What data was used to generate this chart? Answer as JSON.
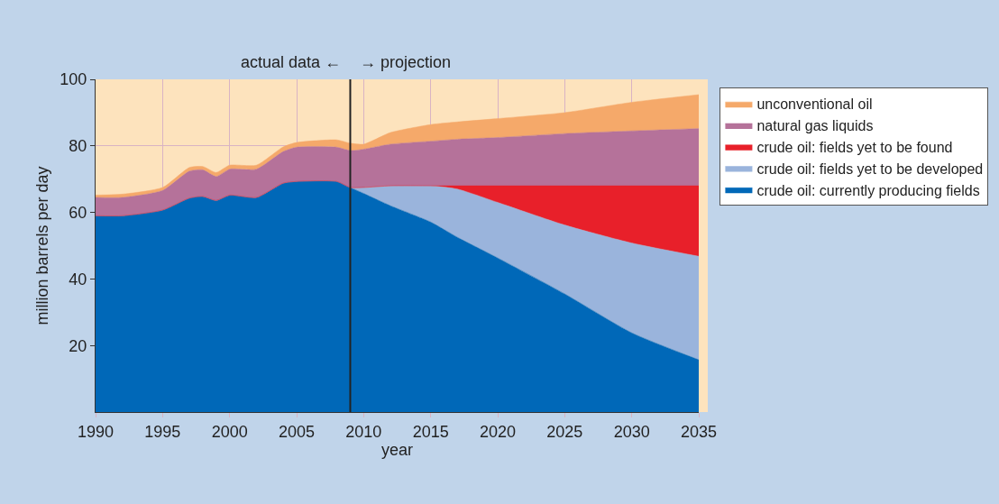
{
  "chart_data": {
    "type": "area",
    "stacked": true,
    "xlabel": "year",
    "ylabel": "million barrels per day",
    "x": [
      1990,
      1992,
      1995,
      1997,
      1998,
      1999,
      2000,
      2002,
      2004,
      2005,
      2008,
      2009,
      2010,
      2012,
      2015,
      2017,
      2020,
      2025,
      2030,
      2035
    ],
    "series": [
      {
        "name": "crude oil: currently producing fields",
        "color": "#0068b8",
        "values": [
          59,
          59,
          60.7,
          64.3,
          64.8,
          63.6,
          65.2,
          64.5,
          68.8,
          69.3,
          69.3,
          67.5,
          65.7,
          62,
          57.1,
          52.5,
          46.3,
          35.5,
          23.8,
          15.7
        ]
      },
      {
        "name": "crude oil: fields yet to be developed",
        "color": "#9ab4dc",
        "values": [
          0,
          0,
          0,
          0,
          0,
          0,
          0,
          0,
          0,
          0,
          0,
          0,
          1.8,
          6,
          10.9,
          14.5,
          16.7,
          20.7,
          27,
          31.1
        ]
      },
      {
        "name": "crude oil: fields yet to be found",
        "color": "#e8202a",
        "values": [
          0,
          0,
          0,
          0,
          0,
          0,
          0,
          0,
          0,
          0,
          0,
          0,
          0,
          0,
          0,
          1,
          5,
          11.8,
          17.2,
          21.2
        ]
      },
      {
        "name": "natural gas liquids",
        "color": "#b5729a",
        "values": [
          5.5,
          5.5,
          5.9,
          8.1,
          8,
          7.2,
          7.8,
          8.5,
          9.5,
          10.3,
          10.3,
          11.1,
          11.5,
          12.5,
          13.4,
          14,
          14.5,
          15.7,
          16.5,
          17.2
        ]
      },
      {
        "name": "unconventional oil",
        "color": "#f5a96a",
        "values": [
          0.7,
          1,
          0.9,
          1.1,
          1,
          1.2,
          1.2,
          1.2,
          1.4,
          1.4,
          2.2,
          2.2,
          1.5,
          3.5,
          5,
          5.2,
          5.7,
          6.3,
          8.6,
          10.2
        ]
      }
    ],
    "xlim": [
      1990,
      2035
    ],
    "xticks": [
      1990,
      1995,
      2000,
      2005,
      2010,
      2015,
      2020,
      2025,
      2030,
      2035
    ],
    "ylim": [
      0,
      100
    ],
    "yticks": [
      20,
      40,
      60,
      80,
      100
    ],
    "grid": true,
    "legend": "right",
    "ref_lines": [
      {
        "axis": "x",
        "value": 2009,
        "color": "#222222"
      }
    ],
    "annotations": [
      "actual data ←",
      "→ projection"
    ]
  }
}
